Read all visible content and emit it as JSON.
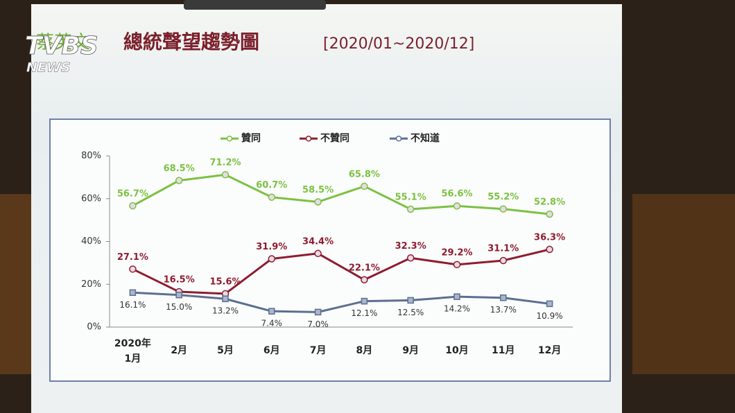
{
  "chart_data": {
    "type": "line",
    "title_prefix": "蔡英文",
    "title": "總統聲望趨勢圖",
    "subtitle": "[2020/01~2020/12]",
    "year_label": "2020年",
    "categories": [
      "1月",
      "2月",
      "5月",
      "6月",
      "7月",
      "8月",
      "9月",
      "10月",
      "11月",
      "12月"
    ],
    "ylim": [
      0,
      80
    ],
    "yticks": [
      {
        "value": 0,
        "label": "0%"
      },
      {
        "value": 20,
        "label": "20%"
      },
      {
        "value": 40,
        "label": "40%"
      },
      {
        "value": 60,
        "label": "60%"
      },
      {
        "value": 80,
        "label": "80%"
      }
    ],
    "series": [
      {
        "name": "贊同",
        "color": "#7cc142",
        "marker": "circle",
        "values": [
          56.7,
          68.5,
          71.2,
          60.7,
          58.5,
          65.8,
          55.1,
          56.6,
          55.2,
          52.8
        ],
        "value_labels": [
          "56.7%",
          "68.5%",
          "71.2%",
          "60.7%",
          "58.5%",
          "65.8%",
          "55.1%",
          "56.6%",
          "55.2%",
          "52.8%"
        ]
      },
      {
        "name": "不贊同",
        "color": "#8e1c30",
        "marker": "circle",
        "values": [
          27.1,
          16.5,
          15.6,
          31.9,
          34.4,
          22.1,
          32.3,
          29.2,
          31.1,
          36.3
        ],
        "value_labels": [
          "27.1%",
          "16.5%",
          "15.6%",
          "31.9%",
          "34.4%",
          "22.1%",
          "32.3%",
          "29.2%",
          "31.1%",
          "36.3%"
        ]
      },
      {
        "name": "不知道",
        "color": "#5b6f90",
        "marker": "square",
        "values": [
          16.1,
          15.0,
          13.2,
          7.4,
          7.0,
          12.1,
          12.5,
          14.2,
          13.7,
          10.9
        ],
        "value_labels": [
          "16.1%",
          "15.0%",
          "13.2%",
          "7.4%",
          "7.0%",
          "12.1%",
          "12.5%",
          "14.2%",
          "13.7%",
          "10.9%"
        ]
      }
    ],
    "watermark": {
      "brand": "TVBS",
      "sub": "NEWS"
    }
  }
}
